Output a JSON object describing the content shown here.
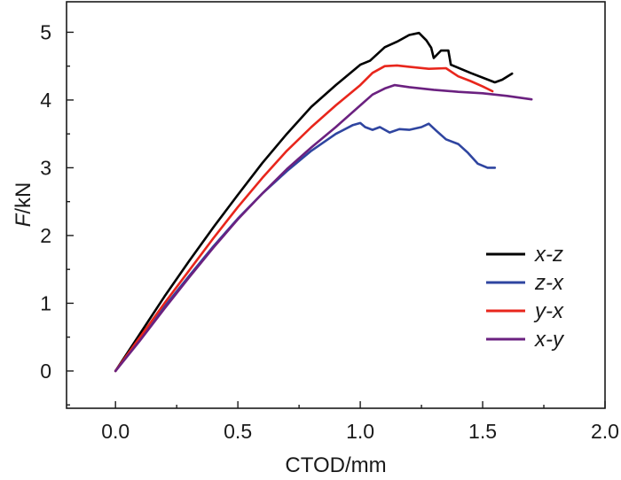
{
  "chart_data": {
    "type": "line",
    "title": "",
    "xlabel": "CTOD/mm",
    "ylabel_italic": "F",
    "ylabel_rest": "/kN",
    "xlim": [
      -0.2,
      2.0
    ],
    "ylim": [
      -0.55,
      5.45
    ],
    "xticks": [
      {
        "value": 0.0,
        "label": "0.0"
      },
      {
        "value": 0.5,
        "label": "0.5"
      },
      {
        "value": 1.0,
        "label": "1.0"
      },
      {
        "value": 1.5,
        "label": "1.5"
      },
      {
        "value": 2.0,
        "label": "2.0"
      }
    ],
    "yticks": [
      {
        "value": 0,
        "label": "0"
      },
      {
        "value": 1,
        "label": "1"
      },
      {
        "value": 2,
        "label": "2"
      },
      {
        "value": 3,
        "label": "3"
      },
      {
        "value": 4,
        "label": "4"
      },
      {
        "value": 5,
        "label": "5"
      }
    ],
    "legend_position": "lower-right",
    "series": [
      {
        "name": "x-z",
        "color": "#000000",
        "points": [
          [
            0.0,
            0.0
          ],
          [
            0.1,
            0.55
          ],
          [
            0.2,
            1.1
          ],
          [
            0.3,
            1.62
          ],
          [
            0.4,
            2.12
          ],
          [
            0.5,
            2.6
          ],
          [
            0.6,
            3.07
          ],
          [
            0.7,
            3.5
          ],
          [
            0.8,
            3.9
          ],
          [
            0.9,
            4.22
          ],
          [
            1.0,
            4.52
          ],
          [
            1.04,
            4.58
          ],
          [
            1.1,
            4.78
          ],
          [
            1.15,
            4.86
          ],
          [
            1.2,
            4.96
          ],
          [
            1.24,
            4.99
          ],
          [
            1.27,
            4.88
          ],
          [
            1.29,
            4.77
          ],
          [
            1.3,
            4.62
          ],
          [
            1.33,
            4.73
          ],
          [
            1.36,
            4.73
          ],
          [
            1.37,
            4.52
          ],
          [
            1.45,
            4.4
          ],
          [
            1.55,
            4.26
          ],
          [
            1.58,
            4.3
          ],
          [
            1.62,
            4.39
          ]
        ]
      },
      {
        "name": "z-x",
        "color": "#2f45a0",
        "points": [
          [
            0.0,
            0.0
          ],
          [
            0.1,
            0.48
          ],
          [
            0.2,
            0.95
          ],
          [
            0.3,
            1.4
          ],
          [
            0.4,
            1.84
          ],
          [
            0.5,
            2.25
          ],
          [
            0.6,
            2.62
          ],
          [
            0.7,
            2.95
          ],
          [
            0.8,
            3.25
          ],
          [
            0.9,
            3.5
          ],
          [
            0.97,
            3.63
          ],
          [
            1.0,
            3.66
          ],
          [
            1.02,
            3.6
          ],
          [
            1.05,
            3.56
          ],
          [
            1.08,
            3.6
          ],
          [
            1.12,
            3.52
          ],
          [
            1.16,
            3.57
          ],
          [
            1.2,
            3.56
          ],
          [
            1.25,
            3.6
          ],
          [
            1.28,
            3.65
          ],
          [
            1.31,
            3.55
          ],
          [
            1.35,
            3.42
          ],
          [
            1.4,
            3.35
          ],
          [
            1.44,
            3.22
          ],
          [
            1.48,
            3.06
          ],
          [
            1.52,
            3.0
          ],
          [
            1.55,
            3.0
          ]
        ]
      },
      {
        "name": "y-x",
        "color": "#e8261c",
        "points": [
          [
            0.0,
            0.0
          ],
          [
            0.1,
            0.5
          ],
          [
            0.2,
            1.0
          ],
          [
            0.3,
            1.48
          ],
          [
            0.4,
            1.96
          ],
          [
            0.5,
            2.42
          ],
          [
            0.6,
            2.85
          ],
          [
            0.7,
            3.25
          ],
          [
            0.8,
            3.6
          ],
          [
            0.9,
            3.92
          ],
          [
            1.0,
            4.22
          ],
          [
            1.05,
            4.4
          ],
          [
            1.1,
            4.5
          ],
          [
            1.15,
            4.51
          ],
          [
            1.2,
            4.49
          ],
          [
            1.28,
            4.46
          ],
          [
            1.35,
            4.47
          ],
          [
            1.4,
            4.35
          ],
          [
            1.45,
            4.28
          ],
          [
            1.5,
            4.2
          ],
          [
            1.54,
            4.13
          ]
        ]
      },
      {
        "name": "x-y",
        "color": "#6b2180",
        "points": [
          [
            0.0,
            0.0
          ],
          [
            0.1,
            0.45
          ],
          [
            0.2,
            0.92
          ],
          [
            0.3,
            1.38
          ],
          [
            0.4,
            1.82
          ],
          [
            0.5,
            2.24
          ],
          [
            0.6,
            2.62
          ],
          [
            0.7,
            2.98
          ],
          [
            0.8,
            3.3
          ],
          [
            0.9,
            3.6
          ],
          [
            1.0,
            3.92
          ],
          [
            1.05,
            4.08
          ],
          [
            1.1,
            4.17
          ],
          [
            1.14,
            4.22
          ],
          [
            1.2,
            4.19
          ],
          [
            1.3,
            4.15
          ],
          [
            1.4,
            4.12
          ],
          [
            1.5,
            4.1
          ],
          [
            1.6,
            4.06
          ],
          [
            1.7,
            4.01
          ]
        ]
      }
    ]
  }
}
